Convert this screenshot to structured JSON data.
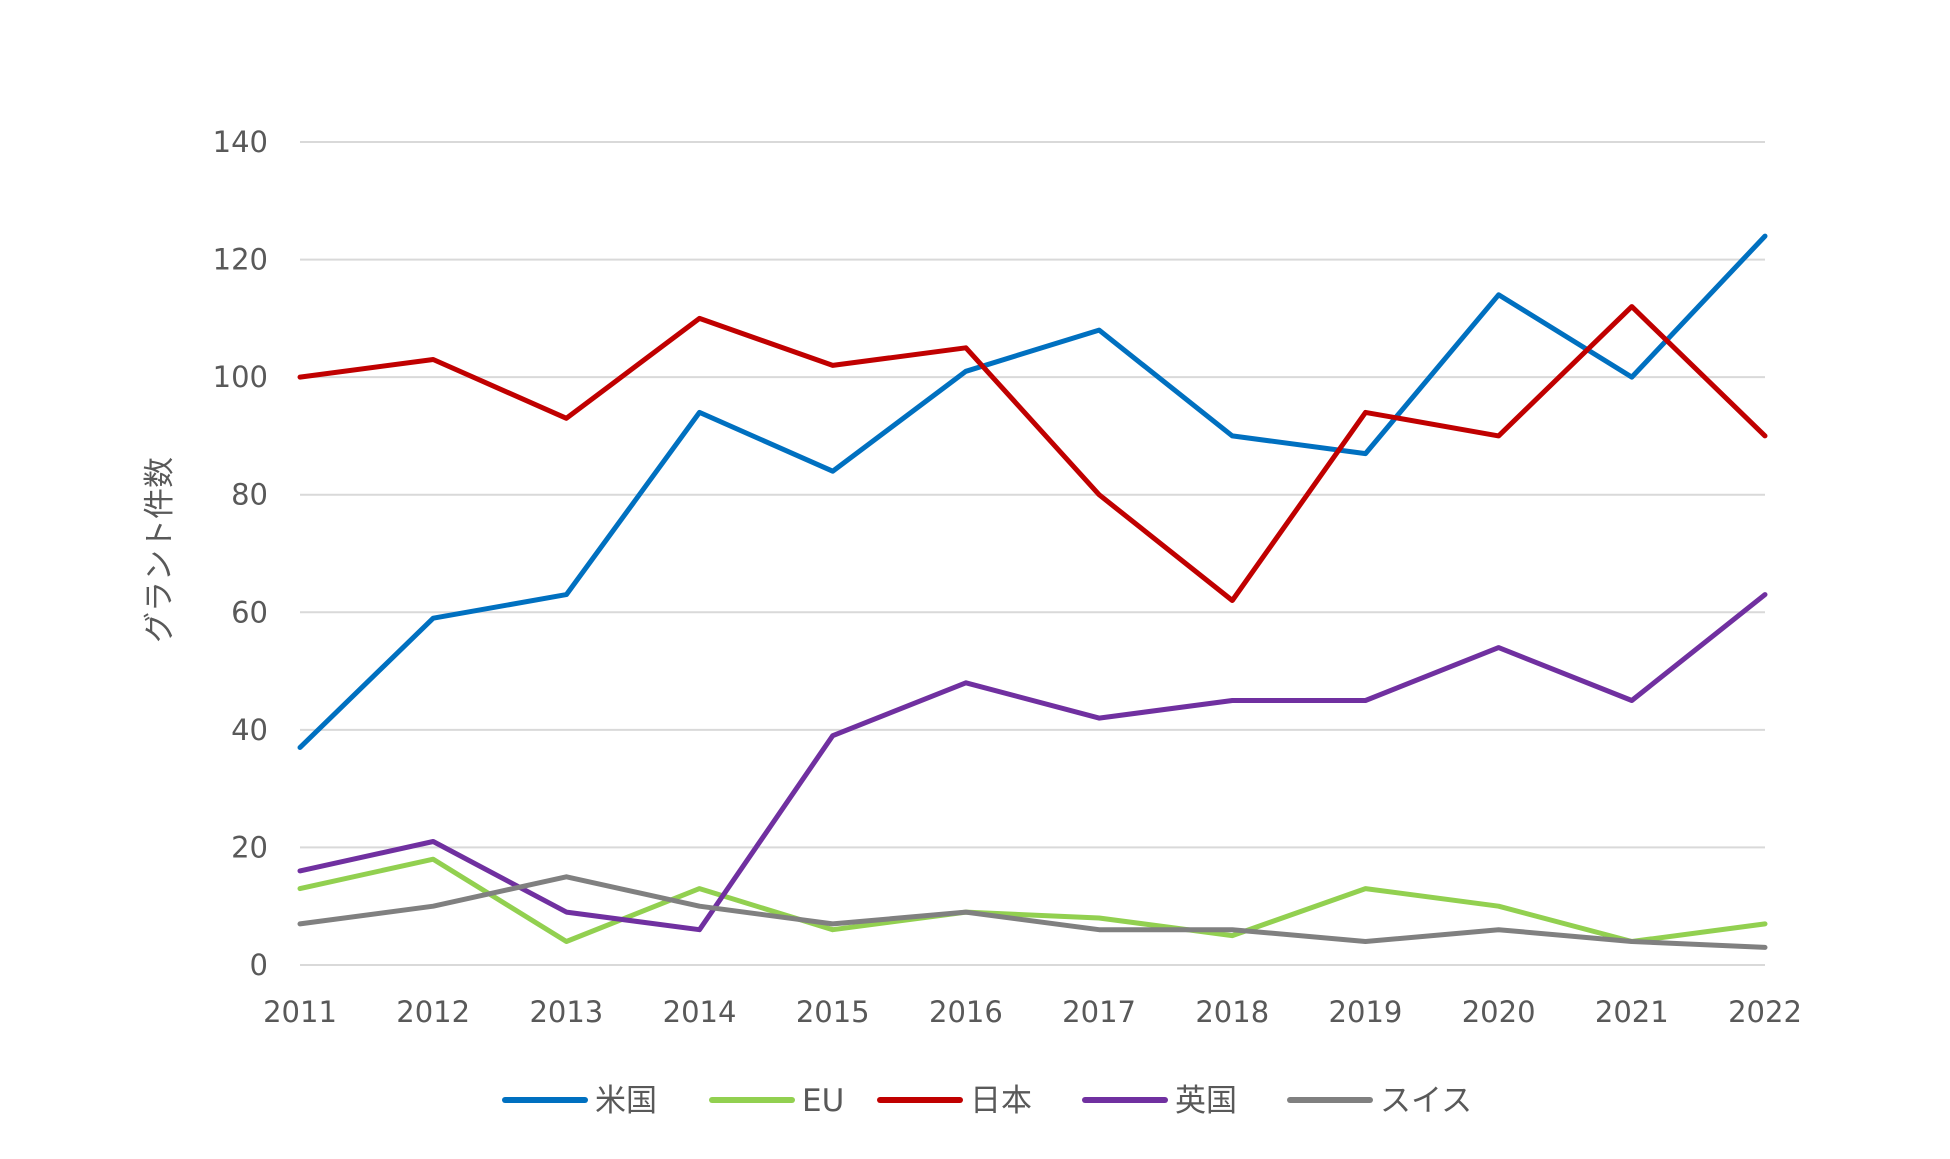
{
  "chart_data": {
    "type": "line",
    "title": "",
    "xlabel": "",
    "ylabel": "グラント件数",
    "ylim": [
      0,
      140
    ],
    "yticks": [
      0,
      20,
      40,
      60,
      80,
      100,
      120,
      140
    ],
    "grid": true,
    "legend_position": "bottom",
    "categories": [
      "2011",
      "2012",
      "2013",
      "2014",
      "2015",
      "2016",
      "2017",
      "2018",
      "2019",
      "2020",
      "2021",
      "2022"
    ],
    "series": [
      {
        "name": "米国",
        "color": "#0070C0",
        "values": [
          37,
          59,
          63,
          94,
          84,
          101,
          108,
          90,
          87,
          114,
          100,
          124
        ]
      },
      {
        "name": "EU",
        "color": "#92D050",
        "values": [
          13,
          18,
          4,
          13,
          6,
          9,
          8,
          5,
          13,
          10,
          4,
          7
        ]
      },
      {
        "name": "日本",
        "color": "#C00000",
        "values": [
          100,
          103,
          93,
          110,
          102,
          105,
          80,
          62,
          94,
          90,
          112,
          90
        ]
      },
      {
        "name": "英国",
        "color": "#7030A0",
        "values": [
          16,
          21,
          9,
          6,
          39,
          48,
          42,
          45,
          45,
          54,
          45,
          63
        ]
      },
      {
        "name": "スイス",
        "color": "#808080",
        "values": [
          7,
          10,
          15,
          10,
          7,
          9,
          6,
          6,
          4,
          6,
          4,
          3
        ]
      }
    ]
  }
}
